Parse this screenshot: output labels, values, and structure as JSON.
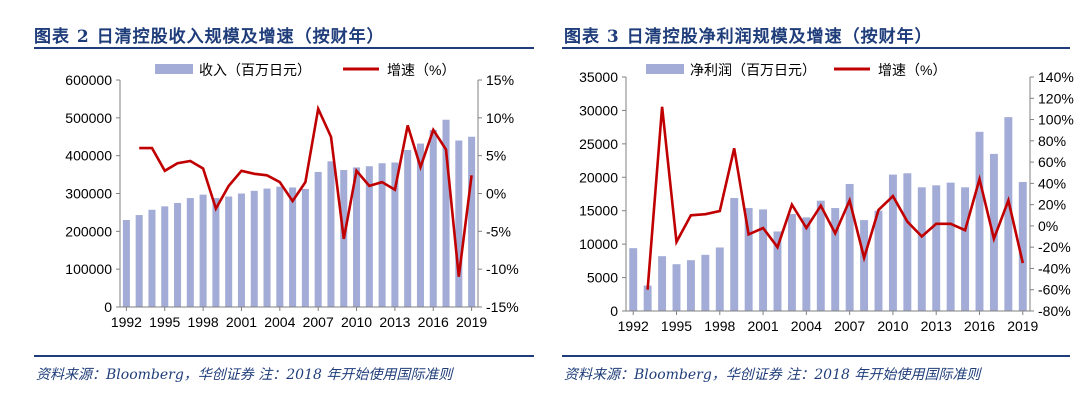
{
  "left": {
    "figure_title": "图表 2   日清控股收入规模及增速（按财年）",
    "source": "资料来源：Bloomberg，华创证券  注：2018 年开始使用国际准则"
  },
  "right": {
    "figure_title": "图表 3   日清控股净利润规模及增速（按财年）",
    "source": "资料来源：Bloomberg，华创证券  注：2018 年开始使用国际准则"
  },
  "colors": {
    "bar": "#a3acd6",
    "line": "#c00000",
    "accent": "#1f3d7a",
    "axis": "#808080"
  },
  "chart_data": [
    {
      "type": "bar",
      "title": "",
      "x": [
        1992,
        1993,
        1994,
        1995,
        1996,
        1997,
        1998,
        1999,
        2000,
        2001,
        2002,
        2003,
        2004,
        2005,
        2006,
        2007,
        2008,
        2009,
        2010,
        2011,
        2012,
        2013,
        2014,
        2015,
        2016,
        2017,
        2018,
        2019
      ],
      "x_tick_labels": [
        "1992",
        "1995",
        "1998",
        "2001",
        "2004",
        "2007",
        "2010",
        "2013",
        "2016",
        "2019"
      ],
      "y_left_ticks": [
        "0",
        "100000",
        "200000",
        "300000",
        "400000",
        "500000",
        "600000"
      ],
      "y_right_ticks": [
        "-15%",
        "-10%",
        "-5%",
        "0%",
        "5%",
        "10%",
        "15%"
      ],
      "ylim_left": [
        0,
        600000
      ],
      "ylim_right": [
        -15,
        15
      ],
      "legend_position": "top",
      "series": [
        {
          "name": "收入（百万日元）",
          "type": "bar",
          "axis": "left",
          "values": [
            230000,
            243000,
            257000,
            266000,
            275000,
            288000,
            297000,
            288000,
            292000,
            300000,
            307000,
            313000,
            318000,
            316000,
            312000,
            357000,
            385000,
            362000,
            369000,
            372000,
            380000,
            382000,
            415000,
            432000,
            468000,
            495000,
            440000,
            450000
          ]
        },
        {
          "name": "增速（%）",
          "type": "line",
          "axis": "right",
          "values": [
            null,
            6,
            6,
            3,
            4,
            4.3,
            3.3,
            -2,
            1,
            3,
            2.6,
            2.4,
            1.5,
            -1,
            1.5,
            11.2,
            7.5,
            -6,
            3,
            1,
            1.5,
            0.5,
            9,
            3.5,
            8.4,
            5.8,
            -11,
            2.4
          ]
        }
      ]
    },
    {
      "type": "bar",
      "title": "",
      "x": [
        1992,
        1993,
        1994,
        1995,
        1996,
        1997,
        1998,
        1999,
        2000,
        2001,
        2002,
        2003,
        2004,
        2005,
        2006,
        2007,
        2008,
        2009,
        2010,
        2011,
        2012,
        2013,
        2014,
        2015,
        2016,
        2017,
        2018,
        2019
      ],
      "x_tick_labels": [
        "1992",
        "1995",
        "1998",
        "2001",
        "2004",
        "2007",
        "2010",
        "2013",
        "2016",
        "2019"
      ],
      "y_left_ticks": [
        "0",
        "5000",
        "10000",
        "15000",
        "20000",
        "25000",
        "30000",
        "35000"
      ],
      "y_right_ticks": [
        "-80%",
        "-60%",
        "-40%",
        "-20%",
        "0%",
        "20%",
        "40%",
        "60%",
        "80%",
        "100%",
        "120%",
        "140%"
      ],
      "ylim_left": [
        0,
        35000
      ],
      "ylim_right": [
        -80,
        140
      ],
      "legend_position": "top",
      "series": [
        {
          "name": "净利润（百万日元）",
          "type": "bar",
          "axis": "left",
          "values": [
            9400,
            3800,
            8200,
            7000,
            7600,
            8400,
            9500,
            16900,
            15400,
            15200,
            11900,
            14500,
            14000,
            16500,
            15400,
            19000,
            13600,
            15000,
            20400,
            20600,
            18500,
            18800,
            19200,
            18500,
            26800,
            23500,
            29000,
            19300
          ]
        },
        {
          "name": "增速（%）",
          "type": "line",
          "axis": "right",
          "values": [
            null,
            -60,
            112,
            -15,
            10,
            11,
            14,
            73,
            -8,
            -2,
            -20,
            20,
            -2,
            19,
            -7,
            24,
            -30,
            15,
            28,
            4,
            -10,
            2,
            2,
            -4,
            44,
            -12,
            24,
            -35
          ]
        }
      ]
    }
  ]
}
